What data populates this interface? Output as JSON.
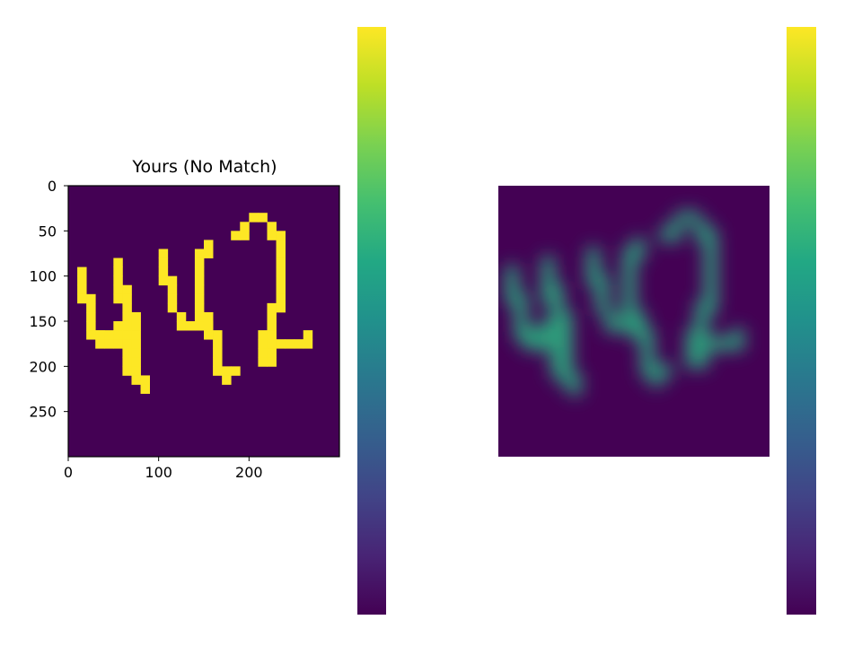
{
  "chart_data": [
    {
      "type": "heatmap",
      "title": "Yours (No Match)",
      "description_kind": "binary drawing of the digits 442 on a 300x300 grid",
      "xlim": [
        0,
        300
      ],
      "ylim": [
        300,
        0
      ],
      "xticks": [
        0,
        100,
        200
      ],
      "yticks": [
        0,
        50,
        100,
        150,
        200,
        250
      ],
      "xtick_labels": [
        "0",
        "100",
        "200"
      ],
      "ytick_labels": [
        "0",
        "50",
        "100",
        "150",
        "200",
        "250"
      ],
      "axes_visible": true,
      "colormap": "viridis",
      "background_color": "#440154",
      "foreground_color": "#fde725",
      "cell_size": 10,
      "filled_cells": [
        [
          1,
          9
        ],
        [
          1,
          10
        ],
        [
          1,
          11
        ],
        [
          1,
          12
        ],
        [
          2,
          12
        ],
        [
          2,
          13
        ],
        [
          2,
          14
        ],
        [
          2,
          15
        ],
        [
          2,
          16
        ],
        [
          3,
          16
        ],
        [
          3,
          17
        ],
        [
          4,
          17
        ],
        [
          5,
          17
        ],
        [
          6,
          17
        ],
        [
          6,
          18
        ],
        [
          6,
          19
        ],
        [
          6,
          20
        ],
        [
          7,
          20
        ],
        [
          7,
          21
        ],
        [
          8,
          21
        ],
        [
          8,
          22
        ],
        [
          5,
          8
        ],
        [
          5,
          9
        ],
        [
          5,
          10
        ],
        [
          5,
          11
        ],
        [
          5,
          12
        ],
        [
          6,
          11
        ],
        [
          6,
          12
        ],
        [
          6,
          13
        ],
        [
          6,
          14
        ],
        [
          6,
          15
        ],
        [
          6,
          16
        ],
        [
          7,
          14
        ],
        [
          7,
          15
        ],
        [
          7,
          16
        ],
        [
          7,
          17
        ],
        [
          7,
          18
        ],
        [
          7,
          19
        ],
        [
          5,
          15
        ],
        [
          5,
          16
        ],
        [
          4,
          16
        ],
        [
          3,
          16
        ],
        [
          10,
          7
        ],
        [
          10,
          8
        ],
        [
          10,
          9
        ],
        [
          10,
          10
        ],
        [
          11,
          10
        ],
        [
          11,
          11
        ],
        [
          11,
          12
        ],
        [
          11,
          13
        ],
        [
          12,
          14
        ],
        [
          12,
          15
        ],
        [
          13,
          15
        ],
        [
          14,
          15
        ],
        [
          15,
          15
        ],
        [
          14,
          7
        ],
        [
          14,
          8
        ],
        [
          14,
          9
        ],
        [
          14,
          10
        ],
        [
          14,
          11
        ],
        [
          14,
          12
        ],
        [
          14,
          13
        ],
        [
          14,
          14
        ],
        [
          15,
          6
        ],
        [
          15,
          7
        ],
        [
          15,
          14
        ],
        [
          15,
          15
        ],
        [
          15,
          16
        ],
        [
          16,
          16
        ],
        [
          16,
          17
        ],
        [
          16,
          18
        ],
        [
          16,
          19
        ],
        [
          16,
          20
        ],
        [
          17,
          20
        ],
        [
          17,
          21
        ],
        [
          18,
          20
        ],
        [
          18,
          5
        ],
        [
          19,
          5
        ],
        [
          19,
          4
        ],
        [
          20,
          3
        ],
        [
          21,
          3
        ],
        [
          22,
          4
        ],
        [
          22,
          5
        ],
        [
          23,
          5
        ],
        [
          23,
          6
        ],
        [
          23,
          7
        ],
        [
          23,
          8
        ],
        [
          23,
          9
        ],
        [
          23,
          10
        ],
        [
          23,
          11
        ],
        [
          23,
          12
        ],
        [
          23,
          13
        ],
        [
          22,
          13
        ],
        [
          22,
          14
        ],
        [
          22,
          15
        ],
        [
          22,
          16
        ],
        [
          21,
          16
        ],
        [
          21,
          17
        ],
        [
          21,
          18
        ],
        [
          21,
          19
        ],
        [
          22,
          19
        ],
        [
          22,
          18
        ],
        [
          22,
          17
        ],
        [
          23,
          17
        ],
        [
          24,
          17
        ],
        [
          25,
          17
        ],
        [
          26,
          17
        ],
        [
          26,
          16
        ]
      ]
    },
    {
      "type": "heatmap",
      "title": "",
      "description_kind": "blurred version of the same drawing, no visible axes",
      "axes_visible": false,
      "colormap": "viridis",
      "background_color": "#440154",
      "cell_size": 10
    }
  ],
  "colorbars": [
    {
      "colormap": "viridis",
      "ticks_visible": false
    },
    {
      "colormap": "viridis",
      "ticks_visible": false
    }
  ]
}
